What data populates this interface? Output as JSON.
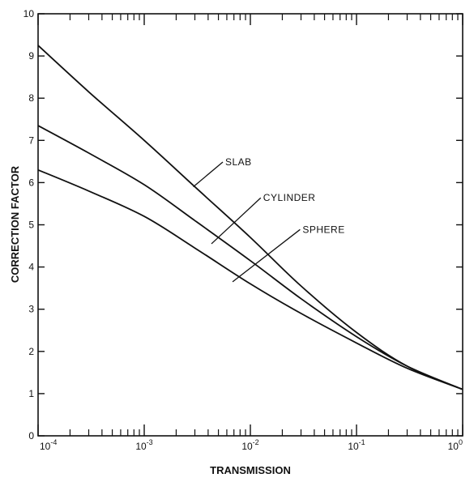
{
  "chart_data": {
    "type": "line",
    "title": "",
    "xlabel": "TRANSMISSION",
    "ylabel": "CORRECTION FACTOR",
    "x_scale": "log",
    "xlim": [
      0.0001,
      1
    ],
    "ylim": [
      0,
      10
    ],
    "grid": false,
    "x_ticks": [
      {
        "value": 0.0001,
        "base": "10",
        "exp": "-4"
      },
      {
        "value": 0.001,
        "base": "10",
        "exp": "-3"
      },
      {
        "value": 0.01,
        "base": "10",
        "exp": "-2"
      },
      {
        "value": 0.1,
        "base": "10",
        "exp": "-1"
      },
      {
        "value": 1,
        "base": "10",
        "exp": "0"
      }
    ],
    "y_ticks": [
      0,
      1,
      2,
      3,
      4,
      5,
      6,
      7,
      8,
      9,
      10
    ],
    "series": [
      {
        "name": "SLAB",
        "x": [
          0.0001,
          0.0003,
          0.001,
          0.003,
          0.01,
          0.03,
          0.1,
          0.3,
          1
        ],
        "y": [
          9.25,
          8.15,
          7.0,
          5.9,
          4.7,
          3.55,
          2.45,
          1.65,
          1.1
        ]
      },
      {
        "name": "CYLINDER",
        "x": [
          0.0001,
          0.0003,
          0.001,
          0.003,
          0.01,
          0.03,
          0.1,
          0.3,
          1
        ],
        "y": [
          7.35,
          6.7,
          5.95,
          5.1,
          4.15,
          3.25,
          2.35,
          1.65,
          1.1
        ]
      },
      {
        "name": "SPHERE",
        "x": [
          0.0001,
          0.0003,
          0.001,
          0.003,
          0.01,
          0.03,
          0.1,
          0.3,
          1
        ],
        "y": [
          6.3,
          5.8,
          5.2,
          4.45,
          3.6,
          2.9,
          2.2,
          1.6,
          1.1
        ]
      }
    ],
    "annotations": [
      {
        "text": "SLAB",
        "label_x": 0.0058,
        "label_y": 6.45,
        "point_x": 0.0029,
        "point_y": 5.9
      },
      {
        "text": "CYLINDER",
        "label_x": 0.0132,
        "label_y": 5.6,
        "point_x": 0.0043,
        "point_y": 4.55
      },
      {
        "text": "SPHERE",
        "label_x": 0.031,
        "label_y": 4.85,
        "point_x": 0.0068,
        "point_y": 3.65
      }
    ]
  }
}
